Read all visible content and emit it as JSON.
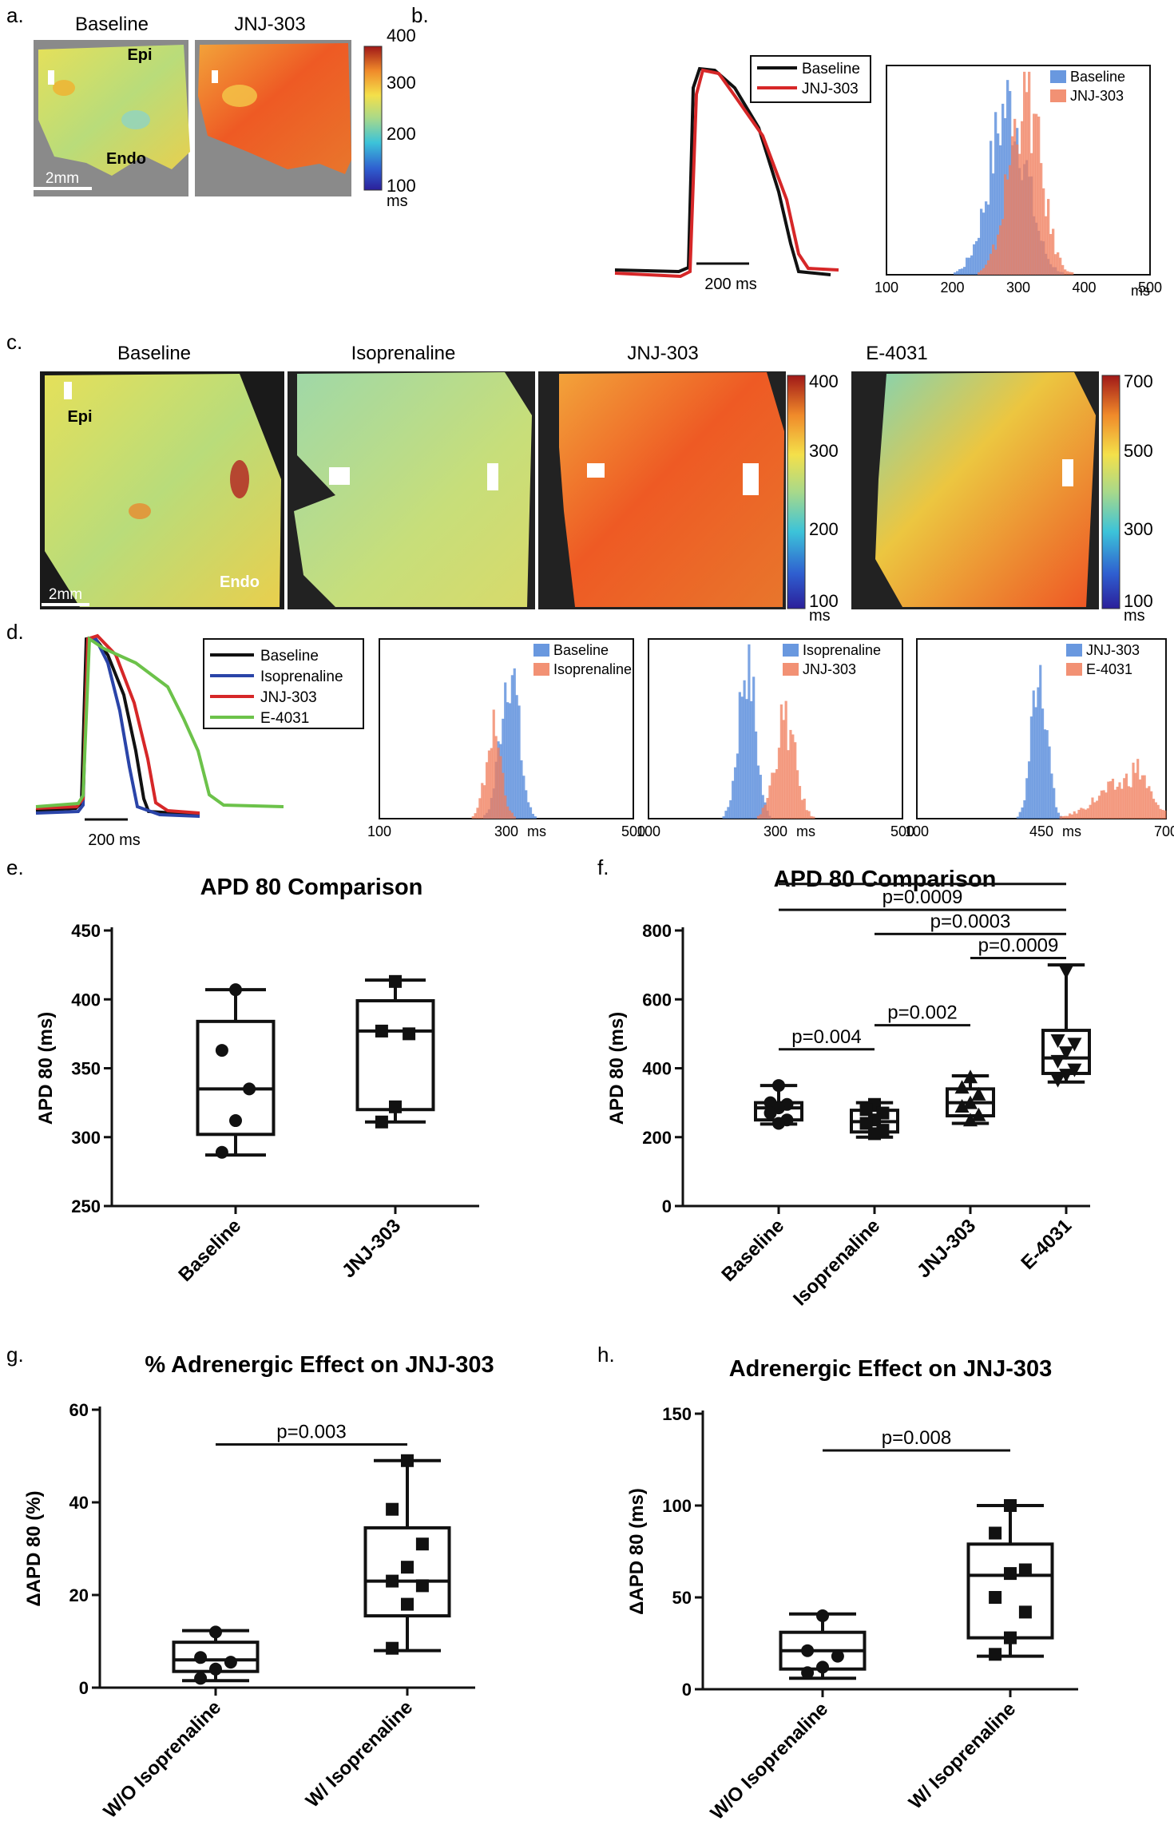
{
  "panels": {
    "a": {
      "letter": "a.",
      "titles": [
        "Baseline",
        "JNJ-303"
      ],
      "labels": {
        "epi": "Epi",
        "endo": "Endo",
        "scale": "2mm"
      },
      "colorbar": {
        "ticks": [
          "400",
          "300",
          "200",
          "100"
        ],
        "unit": "ms"
      }
    },
    "b": {
      "letter": "b.",
      "legend": [
        "Baseline",
        "JNJ-303"
      ],
      "scale": "200 ms",
      "hist": {
        "legend": [
          "Baseline",
          "JNJ-303"
        ],
        "ticks": [
          "100",
          "200",
          "300",
          "400",
          "500"
        ],
        "unit": "ms"
      }
    },
    "c": {
      "letter": "c.",
      "titles": [
        "Baseline",
        "Isoprenaline",
        "JNJ-303",
        "E-4031"
      ],
      "labels": {
        "epi": "Epi",
        "endo": "Endo",
        "scale": "2mm"
      },
      "colorbar1": {
        "ticks": [
          "400",
          "300",
          "200",
          "100"
        ],
        "unit": "ms"
      },
      "colorbar2": {
        "ticks": [
          "700",
          "500",
          "300",
          "100"
        ],
        "unit": "ms"
      }
    },
    "d": {
      "letter": "d.",
      "legend": [
        "Baseline",
        "Isoprenaline",
        "JNJ-303",
        "E-4031"
      ],
      "scale": "200 ms",
      "hist1": {
        "legend": [
          "Baseline",
          "Isoprenaline"
        ],
        "ticks": [
          "100",
          "300",
          "500"
        ],
        "mid": "ms"
      },
      "hist2": {
        "legend": [
          "Isoprenaline",
          "JNJ-303"
        ],
        "ticks": [
          "100",
          "300",
          "500"
        ],
        "mid": "ms"
      },
      "hist3": {
        "legend": [
          "JNJ-303",
          "E-4031"
        ],
        "ticks": [
          "100",
          "450",
          "700"
        ],
        "mid": "ms"
      }
    },
    "e": {
      "letter": "e."
    },
    "f": {
      "letter": "f."
    },
    "g": {
      "letter": "g."
    },
    "h": {
      "letter": "h."
    }
  },
  "colors": {
    "baseline": "#111111",
    "jnj": "#d62728",
    "iso": "#2a44a8",
    "e4031": "#6cc24a",
    "blue_hist": "#4f86d9",
    "red_hist": "#f07e5c"
  },
  "chart_data": [
    {
      "id": "e",
      "type": "box",
      "title": "APD 80 Comparison",
      "ylabel": "APD 80 (ms)",
      "ylim": [
        250,
        450
      ],
      "yticks": [
        250,
        300,
        350,
        400,
        450
      ],
      "categories": [
        "Baseline",
        "JNJ-303"
      ],
      "boxes": [
        {
          "min": 287,
          "q1": 302,
          "median": 335,
          "q3": 384,
          "max": 407,
          "points": [
            407,
            363,
            335,
            312,
            289
          ],
          "marker": "circle"
        },
        {
          "min": 311,
          "q1": 320,
          "median": 377,
          "q3": 399,
          "max": 414,
          "points": [
            413,
            377,
            375,
            322,
            311
          ],
          "marker": "square"
        }
      ],
      "pvalues": []
    },
    {
      "id": "f",
      "type": "box",
      "title": "APD 80 Comparison",
      "ylabel": "APD 80 (ms)",
      "ylim": [
        0,
        800
      ],
      "yticks": [
        0,
        200,
        400,
        600,
        800
      ],
      "categories": [
        "Baseline",
        "Isoprenaline",
        "JNJ-303",
        "E-4031"
      ],
      "boxes": [
        {
          "min": 238,
          "q1": 250,
          "median": 285,
          "q3": 300,
          "max": 350,
          "points": [
            350,
            300,
            295,
            285,
            270,
            250,
            240
          ],
          "marker": "circle"
        },
        {
          "min": 200,
          "q1": 215,
          "median": 245,
          "q3": 278,
          "max": 300,
          "points": [
            295,
            280,
            270,
            250,
            240,
            220,
            210
          ],
          "marker": "square"
        },
        {
          "min": 240,
          "q1": 262,
          "median": 300,
          "q3": 340,
          "max": 378,
          "points": [
            375,
            345,
            325,
            300,
            290,
            265,
            250
          ],
          "marker": "triangle"
        },
        {
          "min": 360,
          "q1": 385,
          "median": 430,
          "q3": 510,
          "max": 700,
          "points": [
            680,
            480,
            470,
            445,
            420,
            395,
            380,
            365
          ],
          "marker": "invtriangle"
        }
      ],
      "pvalues": [
        {
          "label": "p=0.004",
          "from": 0,
          "to": 1,
          "y": 455
        },
        {
          "label": "p=0.002",
          "from": 1,
          "to": 2,
          "y": 525
        },
        {
          "label": "p=0.0009",
          "from": 2,
          "to": 3,
          "y": 720
        },
        {
          "label": "p=0.0003",
          "from": 1,
          "to": 3,
          "y": 790
        },
        {
          "label": "p=0.0009",
          "from": 0,
          "to": 3,
          "y": 860
        },
        {
          "label": "",
          "from": 0,
          "to": 3,
          "y": 935
        }
      ]
    },
    {
      "id": "g",
      "type": "box",
      "title": "% Adrenergic Effect on JNJ-303",
      "ylabel": "ΔAPD 80 (%)",
      "ylim": [
        0,
        60
      ],
      "yticks": [
        0,
        20,
        40,
        60
      ],
      "categories": [
        "W/O Isoprenaline",
        "W/ Isoprenaline"
      ],
      "boxes": [
        {
          "min": 1.5,
          "q1": 3.5,
          "median": 6,
          "q3": 9.8,
          "max": 12.3,
          "points": [
            12,
            6.5,
            5.5,
            4,
            2
          ],
          "marker": "circle"
        },
        {
          "min": 8,
          "q1": 15.5,
          "median": 23,
          "q3": 34.5,
          "max": 49,
          "points": [
            49,
            38.5,
            31,
            26,
            23,
            22,
            18,
            8.5
          ],
          "marker": "square"
        }
      ],
      "pvalues": [
        {
          "label": "p=0.003",
          "from": 0,
          "to": 1,
          "y": 52.5
        }
      ]
    },
    {
      "id": "h",
      "type": "box",
      "title": "Adrenergic Effect on JNJ-303",
      "ylabel": "ΔAPD 80 (ms)",
      "ylim": [
        0,
        150
      ],
      "yticks": [
        0,
        50,
        100,
        150
      ],
      "categories": [
        "W/O Isoprenaline",
        "W/ Isoprenaline"
      ],
      "boxes": [
        {
          "min": 6,
          "q1": 11,
          "median": 21,
          "q3": 31,
          "max": 41,
          "points": [
            40,
            21,
            18,
            12,
            9
          ],
          "marker": "circle"
        },
        {
          "min": 18,
          "q1": 28,
          "median": 62,
          "q3": 79,
          "max": 100,
          "points": [
            100,
            85,
            65,
            63,
            50,
            42,
            28,
            19
          ],
          "marker": "square"
        }
      ],
      "pvalues": [
        {
          "label": "p=0.008",
          "from": 0,
          "to": 1,
          "y": 130
        }
      ]
    }
  ]
}
